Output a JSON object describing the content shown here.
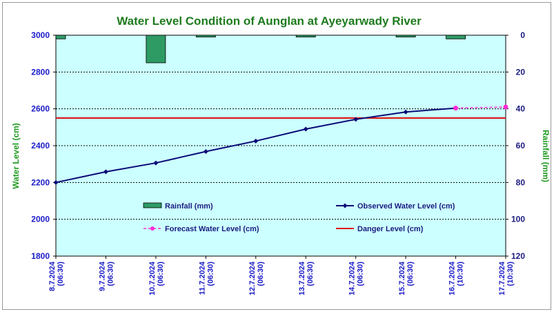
{
  "chart_data": {
    "type": "bar+line",
    "title": "Water Level Condition of Aunglan at Ayeyarwady River",
    "ylabel_left": "Water Level (cm)",
    "ylabel_right": "Rainfall (mm)",
    "ylim_left": [
      1800,
      3000
    ],
    "yticks_left": [
      1800,
      2000,
      2200,
      2400,
      2600,
      2800,
      3000
    ],
    "ylim_right_inverted": [
      0,
      120
    ],
    "yticks_right": [
      0,
      20,
      40,
      60,
      80,
      100,
      120
    ],
    "categories": [
      "8.7.2024 (06:30)",
      "9.7.2024 (06:30)",
      "10.7.2024 (06:30)",
      "11.7.2024 (06:30)",
      "12.7.2024 (06:30)",
      "13.7.2024 (06:30)",
      "14.7.2024 (06:30)",
      "15.7.2024 (06:30)",
      "16.7.2024 (10:30)",
      "17.7.2024 (10:30)"
    ],
    "category_lines": [
      [
        "8.7.2024",
        "(06:30)"
      ],
      [
        "9.7.2024",
        "(06:30)"
      ],
      [
        "10.7.2024",
        "(06:30)"
      ],
      [
        "11.7.2024",
        "(06:30)"
      ],
      [
        "12.7.2024",
        "(06:30)"
      ],
      [
        "13.7.2024",
        "(06:30)"
      ],
      [
        "14.7.2024",
        "(06:30)"
      ],
      [
        "15.7.2024",
        "(06:30)"
      ],
      [
        "16.7.2024",
        "(10:30)"
      ],
      [
        "17.7.2024",
        "(10:30)"
      ]
    ],
    "grid": true,
    "series": [
      {
        "name": "Rainfall (mm)",
        "kind": "bar",
        "axis": "right",
        "color": "#2e9a64",
        "values": [
          2,
          null,
          15,
          1,
          null,
          1,
          null,
          1,
          2,
          null
        ]
      },
      {
        "name": "Observed Water Level (cm)",
        "kind": "line",
        "axis": "left",
        "color": "#0a0a78",
        "values": [
          2200,
          2258,
          2306,
          2368,
          2425,
          2490,
          2543,
          2583,
          2604,
          null
        ]
      },
      {
        "name": "Forecast Water Level (cm)",
        "kind": "line-dashed",
        "axis": "left",
        "color": "#ff2bd6",
        "values": [
          null,
          null,
          null,
          null,
          null,
          null,
          null,
          null,
          2604,
          2610
        ]
      },
      {
        "name": "Danger Level (cm)",
        "kind": "hline",
        "axis": "left",
        "color": "#e01010",
        "value": 2550
      }
    ],
    "legend": {
      "placement": "inside-bottom",
      "items": [
        "Rainfall (mm)",
        "Observed Water Level (cm)",
        "Forecast Water Level (cm)",
        "Danger Level (cm)"
      ]
    },
    "plot_background": "#ccffff"
  }
}
